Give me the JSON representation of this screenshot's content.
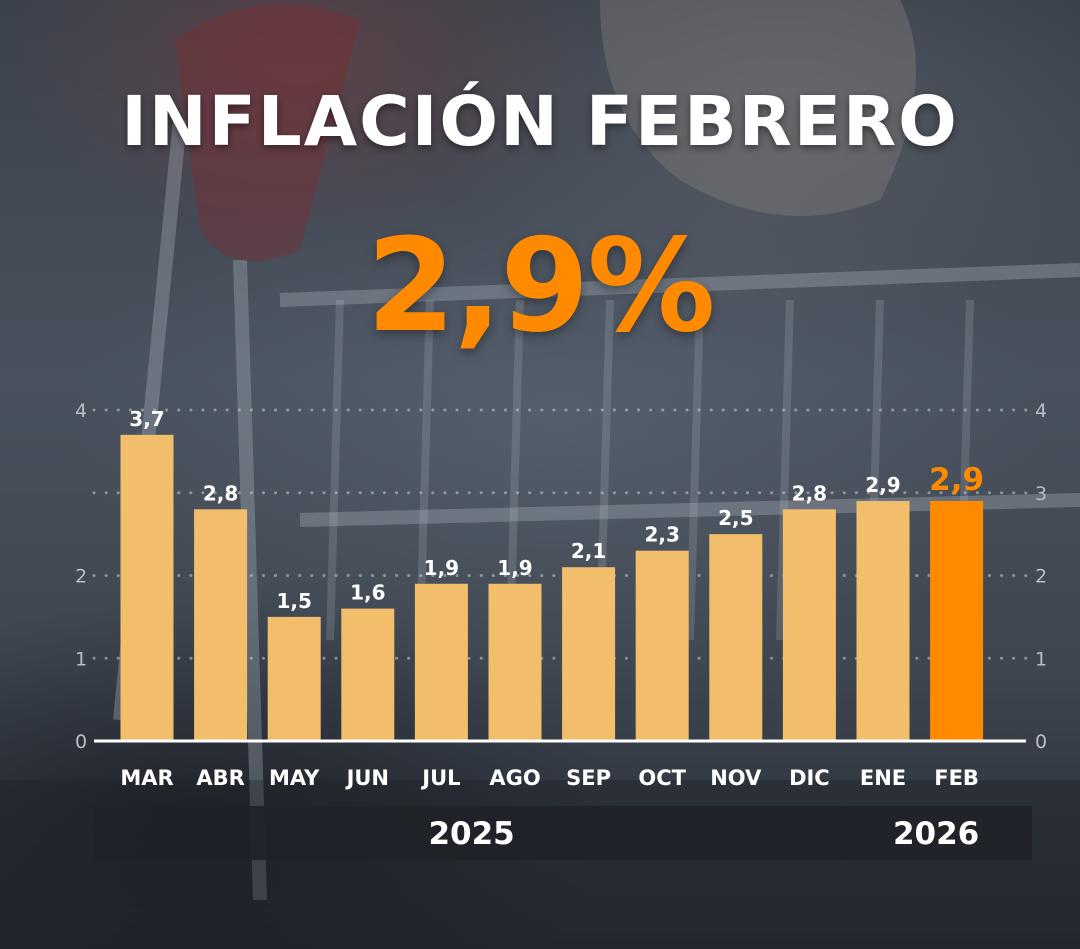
{
  "title": "INFLACIÓN FEBRERO",
  "headline_value": "2,9%",
  "colors": {
    "bar": "#f2be6c",
    "highlight": "#ff8a00",
    "text": "#ffffff",
    "axis_tick_text": "#b8bec8",
    "year_band": "#1f2228"
  },
  "chart_data": {
    "type": "bar",
    "categories": [
      "MAR",
      "ABR",
      "MAY",
      "JUN",
      "JUL",
      "AGO",
      "SEP",
      "OCT",
      "NOV",
      "DIC",
      "ENE",
      "FEB"
    ],
    "values": [
      3.7,
      2.8,
      1.5,
      1.6,
      1.9,
      1.9,
      2.1,
      2.3,
      2.5,
      2.8,
      2.9,
      2.9
    ],
    "data_labels": [
      "3,7",
      "2,8",
      "1,5",
      "1,6",
      "1,9",
      "1,9",
      "2,1",
      "2,3",
      "2,5",
      "2,8",
      "2,9",
      "2,9"
    ],
    "highlight_index": 11,
    "ylim": [
      0,
      4
    ],
    "yticks": [
      0,
      1,
      2,
      3,
      4
    ],
    "ytick_labels_left": [
      "0",
      "1",
      "2",
      "",
      "4"
    ],
    "ytick_labels_right": [
      "0",
      "1",
      "2",
      "3",
      "4"
    ],
    "grid": "dotted horizontal",
    "year_groups": [
      {
        "label": "2025",
        "start": 0,
        "end": 9
      },
      {
        "label": "2026",
        "start": 10,
        "end": 11
      }
    ]
  }
}
